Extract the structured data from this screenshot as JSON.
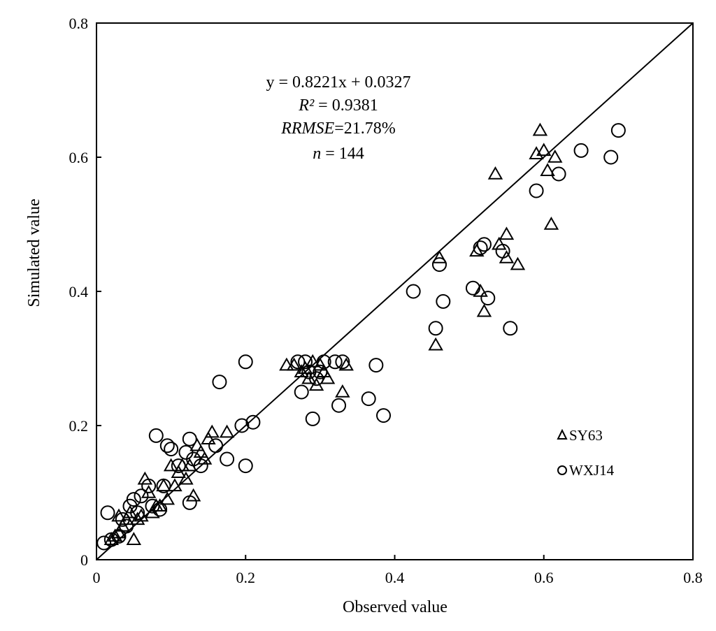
{
  "chart_data": {
    "type": "scatter",
    "xlabel": "Observed value",
    "ylabel": "Simulated value",
    "xlim": [
      0,
      0.8
    ],
    "ylim": [
      0,
      0.8
    ],
    "x_ticks": [
      "0",
      "0.2",
      "0.4",
      "0.6",
      "0.8"
    ],
    "y_ticks": [
      "0",
      "0.2",
      "0.4",
      "0.6",
      "0.8"
    ],
    "grid": false,
    "legend_position": "bottom-right",
    "annotation": {
      "equation": "y = 0.8221x + 0.0327",
      "r2_label": "R²",
      "r2_value": " = 0.9381",
      "rrmse_label": "RRMSE",
      "rrmse_value": "=21.78%",
      "n_label": "n",
      "n_value": " = 144"
    },
    "fit_line": {
      "x": [
        0,
        0.8
      ],
      "y": [
        0,
        0.8
      ]
    },
    "series": [
      {
        "name": "SY63",
        "marker": "triangle",
        "points": [
          [
            0.02,
            0.03
          ],
          [
            0.025,
            0.035
          ],
          [
            0.03,
            0.04
          ],
          [
            0.035,
            0.05
          ],
          [
            0.04,
            0.06
          ],
          [
            0.03,
            0.065
          ],
          [
            0.045,
            0.07
          ],
          [
            0.05,
            0.03
          ],
          [
            0.055,
            0.06
          ],
          [
            0.06,
            0.065
          ],
          [
            0.065,
            0.12
          ],
          [
            0.07,
            0.1
          ],
          [
            0.075,
            0.07
          ],
          [
            0.08,
            0.08
          ],
          [
            0.085,
            0.08
          ],
          [
            0.09,
            0.11
          ],
          [
            0.095,
            0.09
          ],
          [
            0.1,
            0.14
          ],
          [
            0.105,
            0.11
          ],
          [
            0.11,
            0.13
          ],
          [
            0.115,
            0.14
          ],
          [
            0.12,
            0.12
          ],
          [
            0.125,
            0.14
          ],
          [
            0.13,
            0.095
          ],
          [
            0.135,
            0.17
          ],
          [
            0.14,
            0.16
          ],
          [
            0.145,
            0.15
          ],
          [
            0.15,
            0.18
          ],
          [
            0.155,
            0.19
          ],
          [
            0.175,
            0.19
          ],
          [
            0.255,
            0.29
          ],
          [
            0.265,
            0.29
          ],
          [
            0.275,
            0.28
          ],
          [
            0.28,
            0.285
          ],
          [
            0.285,
            0.27
          ],
          [
            0.29,
            0.295
          ],
          [
            0.295,
            0.26
          ],
          [
            0.3,
            0.29
          ],
          [
            0.305,
            0.28
          ],
          [
            0.31,
            0.27
          ],
          [
            0.33,
            0.25
          ],
          [
            0.335,
            0.29
          ],
          [
            0.455,
            0.32
          ],
          [
            0.46,
            0.45
          ],
          [
            0.51,
            0.46
          ],
          [
            0.515,
            0.4
          ],
          [
            0.52,
            0.37
          ],
          [
            0.535,
            0.575
          ],
          [
            0.54,
            0.47
          ],
          [
            0.55,
            0.485
          ],
          [
            0.55,
            0.45
          ],
          [
            0.565,
            0.44
          ],
          [
            0.59,
            0.605
          ],
          [
            0.595,
            0.64
          ],
          [
            0.6,
            0.61
          ],
          [
            0.605,
            0.58
          ],
          [
            0.61,
            0.5
          ],
          [
            0.615,
            0.6
          ]
        ]
      },
      {
        "name": "WXJ14",
        "marker": "circle",
        "points": [
          [
            0.01,
            0.025
          ],
          [
            0.015,
            0.07
          ],
          [
            0.02,
            0.03
          ],
          [
            0.03,
            0.035
          ],
          [
            0.035,
            0.06
          ],
          [
            0.04,
            0.05
          ],
          [
            0.045,
            0.08
          ],
          [
            0.05,
            0.09
          ],
          [
            0.055,
            0.07
          ],
          [
            0.06,
            0.095
          ],
          [
            0.07,
            0.11
          ],
          [
            0.075,
            0.08
          ],
          [
            0.08,
            0.185
          ],
          [
            0.085,
            0.075
          ],
          [
            0.09,
            0.11
          ],
          [
            0.095,
            0.17
          ],
          [
            0.1,
            0.165
          ],
          [
            0.11,
            0.14
          ],
          [
            0.12,
            0.16
          ],
          [
            0.125,
            0.085
          ],
          [
            0.125,
            0.18
          ],
          [
            0.13,
            0.15
          ],
          [
            0.14,
            0.14
          ],
          [
            0.16,
            0.17
          ],
          [
            0.165,
            0.265
          ],
          [
            0.175,
            0.15
          ],
          [
            0.195,
            0.2
          ],
          [
            0.2,
            0.14
          ],
          [
            0.2,
            0.295
          ],
          [
            0.21,
            0.205
          ],
          [
            0.27,
            0.295
          ],
          [
            0.275,
            0.25
          ],
          [
            0.28,
            0.295
          ],
          [
            0.285,
            0.28
          ],
          [
            0.29,
            0.21
          ],
          [
            0.295,
            0.27
          ],
          [
            0.3,
            0.28
          ],
          [
            0.305,
            0.295
          ],
          [
            0.32,
            0.295
          ],
          [
            0.325,
            0.23
          ],
          [
            0.33,
            0.295
          ],
          [
            0.365,
            0.24
          ],
          [
            0.375,
            0.29
          ],
          [
            0.385,
            0.215
          ],
          [
            0.425,
            0.4
          ],
          [
            0.455,
            0.345
          ],
          [
            0.46,
            0.44
          ],
          [
            0.465,
            0.385
          ],
          [
            0.505,
            0.405
          ],
          [
            0.515,
            0.465
          ],
          [
            0.52,
            0.47
          ],
          [
            0.525,
            0.39
          ],
          [
            0.545,
            0.46
          ],
          [
            0.555,
            0.345
          ],
          [
            0.59,
            0.55
          ],
          [
            0.62,
            0.575
          ],
          [
            0.65,
            0.61
          ],
          [
            0.69,
            0.6
          ],
          [
            0.7,
            0.64
          ]
        ]
      }
    ]
  }
}
